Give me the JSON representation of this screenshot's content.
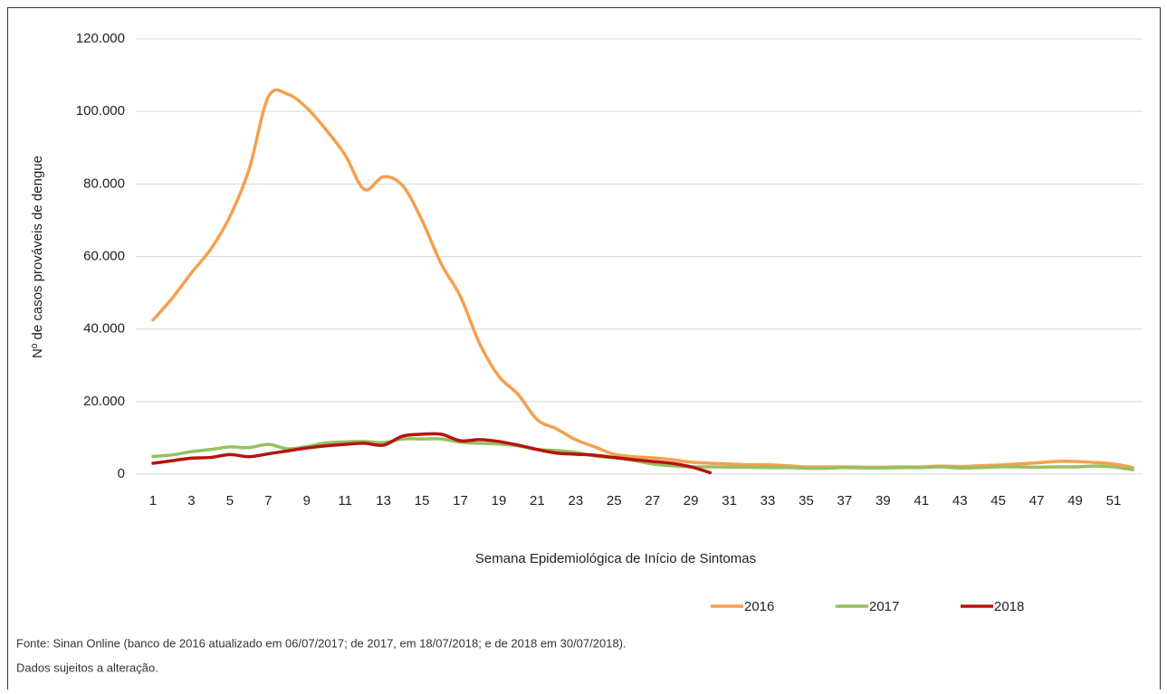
{
  "chart_data": {
    "type": "line",
    "y_label": "Nº de casos prováveis de dengue",
    "x_label": "Semana Epidemiológica de Início de Sintomas",
    "categories": [
      "1",
      null,
      "3",
      null,
      "5",
      null,
      "7",
      null,
      "9",
      null,
      "11",
      null,
      "13",
      null,
      "15",
      null,
      "17",
      null,
      "19",
      null,
      "21",
      null,
      "23",
      null,
      "25",
      null,
      "27",
      null,
      "29",
      null,
      "31",
      null,
      "33",
      null,
      "35",
      null,
      "37",
      null,
      "39",
      null,
      "41",
      null,
      "43",
      null,
      "45",
      null,
      "47",
      null,
      "49",
      null,
      "51",
      null
    ],
    "ylim": [
      0,
      120000
    ],
    "yticks": [
      0,
      {
        "value": 20000,
        "label": "20.000"
      },
      {
        "value": 40000,
        "label": "40.000"
      },
      {
        "value": 60000,
        "label": "60.000"
      },
      {
        "value": 80000,
        "label": "80.000"
      },
      {
        "value": 100000,
        "label": "100.000"
      },
      {
        "value": 120000,
        "label": "120.000"
      }
    ],
    "grid": true,
    "legend": "bottom",
    "series": [
      {
        "name": "2016",
        "color": "#f5a04d",
        "values": [
          42500,
          48500,
          55500,
          62000,
          71000,
          84000,
          104000,
          104800,
          101000,
          95000,
          88000,
          78500,
          82000,
          79500,
          70000,
          58000,
          49000,
          36000,
          27000,
          22000,
          15000,
          12500,
          9500,
          7500,
          5500,
          4800,
          4500,
          4000,
          3300,
          3000,
          2800,
          2600,
          2600,
          2300,
          2000,
          2000,
          2000,
          1900,
          1900,
          2000,
          2000,
          2200,
          2100,
          2300,
          2500,
          2800,
          3100,
          3500,
          3500,
          3200,
          2800,
          1800
        ]
      },
      {
        "name": "2017",
        "color": "#95c15f",
        "values": [
          4900,
          5300,
          6200,
          6800,
          7500,
          7300,
          8200,
          7000,
          7600,
          8600,
          8900,
          9000,
          8700,
          9700,
          9700,
          9700,
          8800,
          8500,
          8300,
          7800,
          6800,
          6500,
          6000,
          5000,
          4500,
          3800,
          2800,
          2300,
          2000,
          2000,
          1900,
          1900,
          1800,
          1800,
          1600,
          1600,
          1800,
          1700,
          1700,
          1800,
          1800,
          2000,
          1700,
          1800,
          2000,
          2000,
          1900,
          2000,
          2000,
          2200,
          2000,
          1200
        ]
      },
      {
        "name": "2018",
        "color": "#b5140f",
        "values": [
          3000,
          3700,
          4400,
          4600,
          5400,
          4800,
          5600,
          6400,
          7200,
          7800,
          8200,
          8500,
          8000,
          10500,
          11000,
          11000,
          9200,
          9500,
          9000,
          8000,
          6800,
          5800,
          5500,
          5200,
          4600,
          4000,
          3500,
          3000,
          2000,
          400,
          null,
          null,
          null,
          null,
          null,
          null,
          null,
          null,
          null,
          null,
          null,
          null,
          null,
          null,
          null,
          null,
          null,
          null,
          null,
          null,
          null,
          null
        ]
      }
    ],
    "notes": [
      "Fonte: Sinan Online (banco de 2016 atualizado em 06/07/2017; de 2017, em 18/07/2018; e de 2018 em 30/07/2018).",
      "Dados sujeitos a alteração."
    ]
  }
}
